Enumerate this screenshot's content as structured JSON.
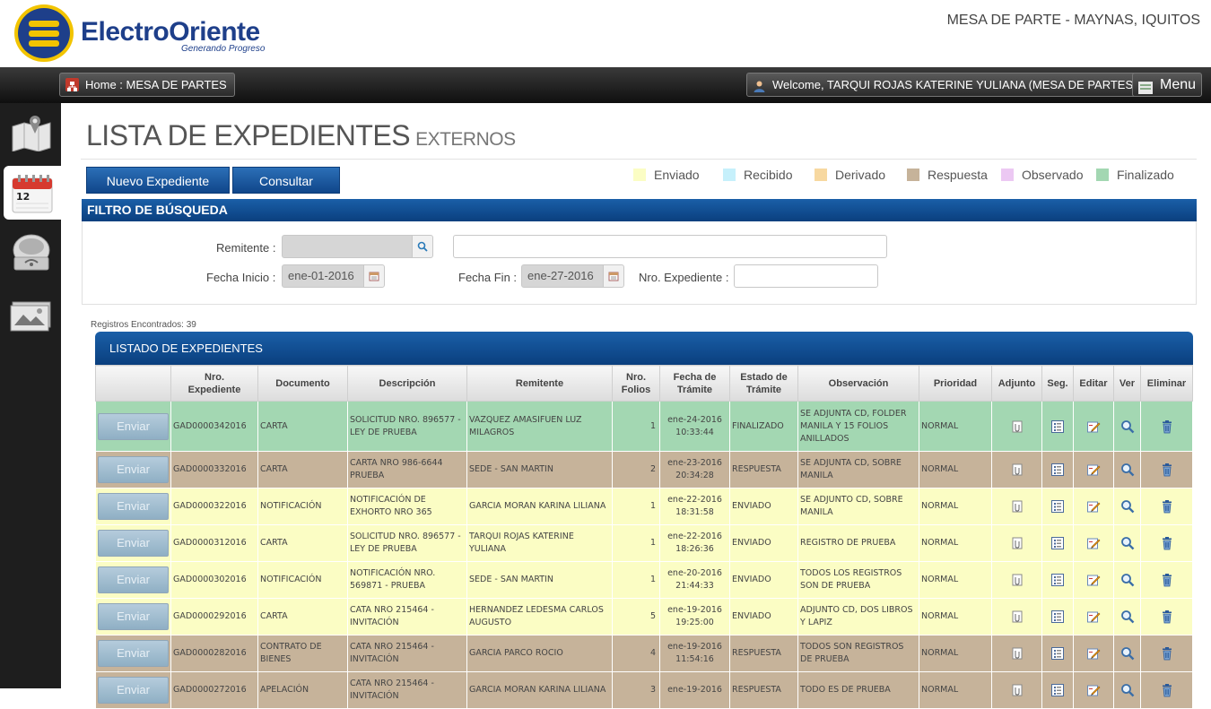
{
  "header": {
    "logo_name": "ElectroOriente",
    "logo_tagline": "Generando Progreso",
    "office": "MESA DE PARTE - MAYNAS, IQUITOS"
  },
  "topbar": {
    "home_label": "Home : MESA DE PARTES",
    "welcome_label": "Welcome, TARQUI ROJAS KATERINE YULIANA (MESA DE PARTES)",
    "menu_label": "Menu"
  },
  "sidebar": {
    "calendar_day": "12",
    "items": [
      {
        "icon": "map-icon"
      },
      {
        "icon": "calendar-icon"
      },
      {
        "icon": "scanner-icon"
      },
      {
        "icon": "documents-icon"
      }
    ]
  },
  "page": {
    "title": "LISTA DE EXPEDIENTES",
    "subtitle": "EXTERNOS"
  },
  "actions": {
    "new_label": "Nuevo Expediente",
    "query_label": "Consultar"
  },
  "legend": [
    {
      "label": "Enviado",
      "color": "#fbfdc4"
    },
    {
      "label": "Recibido",
      "color": "#c6f0fb"
    },
    {
      "label": "Derivado",
      "color": "#f7d8a0"
    },
    {
      "label": "Respuesta",
      "color": "#c6b39a"
    },
    {
      "label": "Observado",
      "color": "#ecc8f3"
    },
    {
      "label": "Finalizado",
      "color": "#a3d7b2"
    }
  ],
  "filter": {
    "title": "FILTRO DE BÚSQUEDA",
    "remitente_label": "Remitente :",
    "remitente_value": "",
    "remitente_name_value": "",
    "fecha_inicio_label": "Fecha Inicio :",
    "fecha_inicio_value": "ene-01-2016",
    "fecha_fin_label": "Fecha Fin :",
    "fecha_fin_value": "ene-27-2016",
    "nro_exp_label": "Nro. Expediente :",
    "nro_exp_value": ""
  },
  "results": {
    "count_text": "Registros Encontrados: 39",
    "list_title": "LISTADO DE EXPEDIENTES",
    "send_label": "Enviar",
    "columns": [
      "",
      "Nro.\nExpediente",
      "Documento",
      "Descripción",
      "Remitente",
      "Nro.\nFolios",
      "Fecha de\nTrámite",
      "Estado de\nTrámite",
      "Observación",
      "Prioridad",
      "Adjunto",
      "Seg.",
      "Editar",
      "Ver",
      "Eliminar"
    ],
    "rows": [
      {
        "nro": "GAD0000342016",
        "doc": "CARTA",
        "desc": "SOLICITUD NRO. 896577 - LEY DE PRUEBA",
        "remitente": "VAZQUEZ AMASIFUEN LUZ MILAGROS",
        "folios": "1",
        "fecha": "ene-24-2016",
        "hora": "10:33:44",
        "estado": "FINALIZADO",
        "obs": "SE ADJUNTA CD, FOLDER MANILA Y 15 FOLIOS ANILLADOS",
        "prioridad": "NORMAL",
        "color": "#a3d7b2"
      },
      {
        "nro": "GAD0000332016",
        "doc": "CARTA",
        "desc": "CARTA NRO 986-6644 PRUEBA",
        "remitente": "SEDE - SAN MARTIN",
        "folios": "2",
        "fecha": "ene-23-2016",
        "hora": "20:34:28",
        "estado": "RESPUESTA",
        "obs": "SE ADJUNTA CD, SOBRE MANILA",
        "prioridad": "NORMAL",
        "color": "#c6b39a"
      },
      {
        "nro": "GAD0000322016",
        "doc": "NOTIFICACIÓN",
        "desc": "NOTIFICACIÓN DE EXHORTO NRO 365",
        "remitente": "GARCIA MORAN KARINA LILIANA",
        "folios": "1",
        "fecha": "ene-22-2016",
        "hora": "18:31:58",
        "estado": "ENVIADO",
        "obs": "SE ADJUNTO CD, SOBRE MANILA",
        "prioridad": "NORMAL",
        "color": "#fbfdc4"
      },
      {
        "nro": "GAD0000312016",
        "doc": "CARTA",
        "desc": "SOLICITUD NRO. 896577 - LEY DE PRUEBA",
        "remitente": "TARQUI ROJAS KATERINE YULIANA",
        "folios": "1",
        "fecha": "ene-22-2016",
        "hora": "18:26:36",
        "estado": "ENVIADO",
        "obs": "REGISTRO DE PRUEBA",
        "prioridad": "NORMAL",
        "color": "#fbfdc4"
      },
      {
        "nro": "GAD0000302016",
        "doc": "NOTIFICACIÓN",
        "desc": "NOTIFICACIÓN NRO. 569871 - PRUEBA",
        "remitente": "SEDE - SAN MARTIN",
        "folios": "1",
        "fecha": "ene-20-2016",
        "hora": "21:44:33",
        "estado": "ENVIADO",
        "obs": "TODOS LOS REGISTROS SON DE PRUEBA",
        "prioridad": "NORMAL",
        "color": "#fbfdc4"
      },
      {
        "nro": "GAD0000292016",
        "doc": "CARTA",
        "desc": "CATA NRO 215464 - INVITACIÓN",
        "remitente": "HERNANDEZ LEDESMA CARLOS AUGUSTO",
        "folios": "5",
        "fecha": "ene-19-2016",
        "hora": "19:25:00",
        "estado": "ENVIADO",
        "obs": "ADJUNTO CD, DOS LIBROS Y LAPIZ",
        "prioridad": "NORMAL",
        "color": "#fbfdc4"
      },
      {
        "nro": "GAD0000282016",
        "doc": "CONTRATO DE BIENES",
        "desc": "CATA NRO 215464 - INVITACIÓN",
        "remitente": "GARCIA PARCO ROCIO",
        "folios": "4",
        "fecha": "ene-19-2016",
        "hora": "11:54:16",
        "estado": "RESPUESTA",
        "obs": "TODOS SON REGISTROS DE PRUEBA",
        "prioridad": "NORMAL",
        "color": "#c6b39a"
      },
      {
        "nro": "GAD0000272016",
        "doc": "APELACIÓN",
        "desc": "CATA NRO 215464 - INVITACIÓN",
        "remitente": "GARCIA MORAN KARINA LILIANA",
        "folios": "3",
        "fecha": "ene-19-2016",
        "hora": "",
        "estado": "RESPUESTA",
        "obs": "TODO ES DE PRUEBA",
        "prioridad": "NORMAL",
        "color": "#c6b39a"
      }
    ]
  }
}
